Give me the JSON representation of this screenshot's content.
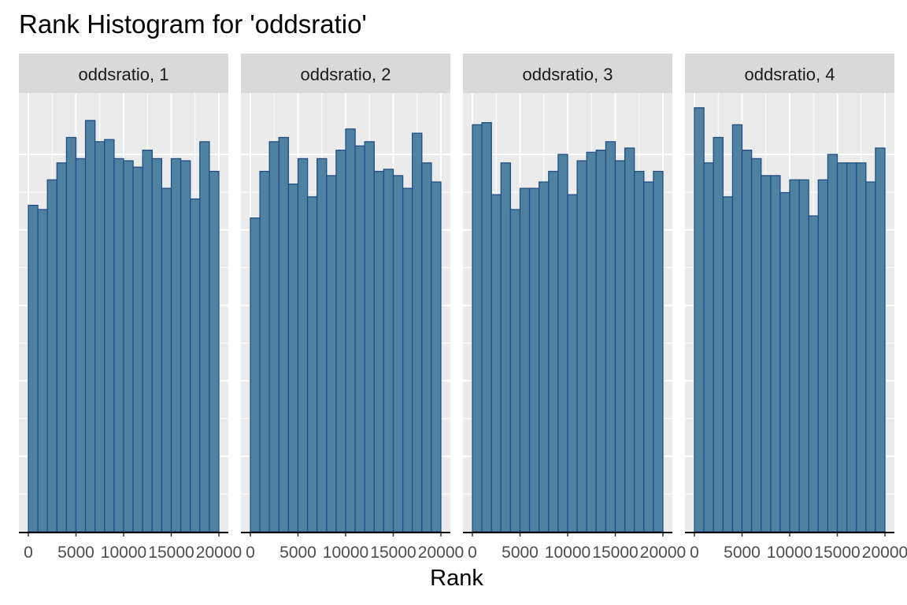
{
  "chart_data": {
    "type": "bar",
    "title": "Rank Histogram for 'oddsratio'",
    "xlabel": "Rank",
    "ylabel": "",
    "xlim": [
      0,
      20000
    ],
    "ylim": [
      0,
      1
    ],
    "x_tick_labels": [
      "0",
      "5000",
      "10000",
      "15000",
      "20000"
    ],
    "y_tick_labels_shown": false,
    "grid": true,
    "bin_width": 1000,
    "bin_centers": [
      500,
      1500,
      2500,
      3500,
      4500,
      5500,
      6500,
      7500,
      8500,
      9500,
      10500,
      11500,
      12500,
      13500,
      14500,
      15500,
      16500,
      17500,
      18500,
      19500
    ],
    "colors": {
      "bar_fill": "#4f81a0",
      "bar_stroke": "#1f4f86",
      "panel_bg": "#ebebeb",
      "grid": "#ffffff",
      "strip_bg": "#d9d9d9"
    },
    "panels": [
      {
        "strip": "oddsratio, 1",
        "values": [
          0.77,
          0.76,
          0.83,
          0.87,
          0.93,
          0.88,
          0.97,
          0.92,
          0.925,
          0.88,
          0.875,
          0.86,
          0.9,
          0.88,
          0.81,
          0.88,
          0.875,
          0.785,
          0.92,
          0.85
        ]
      },
      {
        "strip": "oddsratio, 2",
        "values": [
          0.74,
          0.85,
          0.92,
          0.93,
          0.82,
          0.88,
          0.79,
          0.88,
          0.84,
          0.9,
          0.95,
          0.91,
          0.92,
          0.85,
          0.855,
          0.84,
          0.81,
          0.94,
          0.87,
          0.825
        ]
      },
      {
        "strip": "oddsratio, 3",
        "values": [
          0.96,
          0.965,
          0.795,
          0.87,
          0.76,
          0.81,
          0.81,
          0.825,
          0.85,
          0.89,
          0.795,
          0.875,
          0.895,
          0.9,
          0.92,
          0.875,
          0.905,
          0.85,
          0.825,
          0.85
        ]
      },
      {
        "strip": "oddsratio, 4",
        "values": [
          1.0,
          0.87,
          0.93,
          0.79,
          0.96,
          0.9,
          0.88,
          0.84,
          0.84,
          0.8,
          0.83,
          0.83,
          0.745,
          0.83,
          0.89,
          0.87,
          0.87,
          0.87,
          0.825,
          0.905
        ]
      }
    ]
  }
}
